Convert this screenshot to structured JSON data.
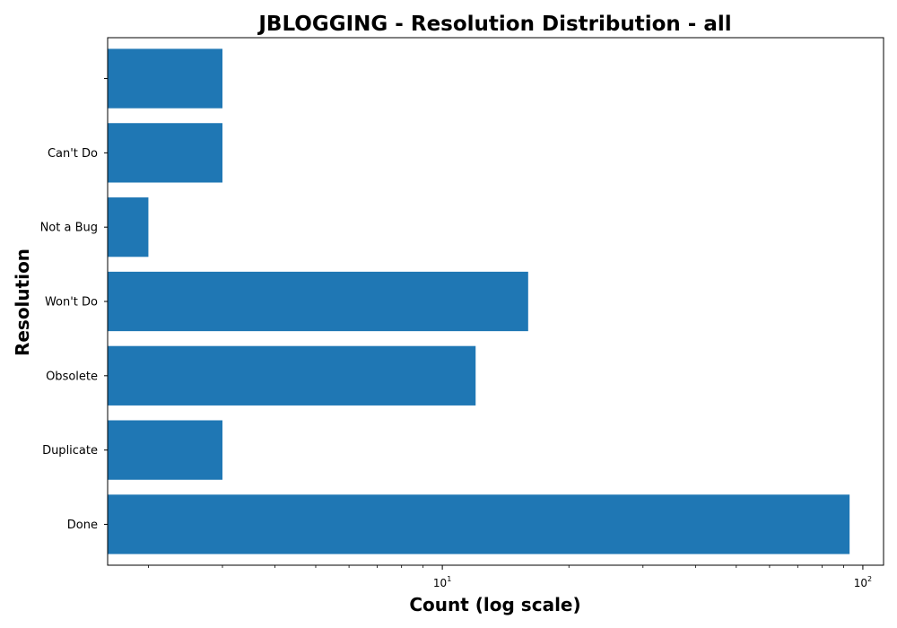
{
  "chart_data": {
    "type": "bar",
    "orientation": "horizontal",
    "title": "JBLOGGING - Resolution Distribution - all",
    "xlabel": "Count (log scale)",
    "ylabel": "Resolution",
    "xscale": "log",
    "xlim": [
      1.6,
      112
    ],
    "categories": [
      "Done",
      "Duplicate",
      "Obsolete",
      "Won't Do",
      "Not a Bug",
      "Can't Do",
      ""
    ],
    "values": [
      93,
      3,
      12,
      16,
      2,
      3,
      3
    ],
    "x_ticks": [
      {
        "base": "10",
        "exp": "1",
        "value": 10
      },
      {
        "base": "10",
        "exp": "2",
        "value": 100
      }
    ],
    "bar_color": "#1f77b4",
    "grid": false,
    "legend": "none"
  }
}
